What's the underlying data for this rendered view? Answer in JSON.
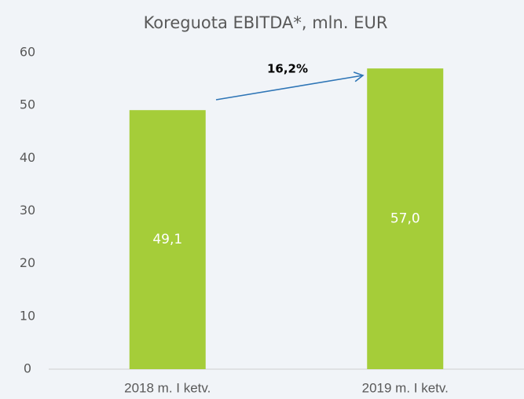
{
  "chart_data": {
    "type": "bar",
    "title": "Koreguota EBITDA*, mln. EUR",
    "categories": [
      "2018 m. I ketv.",
      "2019 m. I ketv."
    ],
    "values": [
      49.1,
      57.0
    ],
    "value_labels": [
      "49,1",
      "57,0"
    ],
    "color": "#a5cd39",
    "ylim": [
      0,
      60
    ],
    "yticks": [
      0,
      10,
      20,
      30,
      40,
      50,
      60
    ],
    "grid": false,
    "annotation": "16,2%"
  }
}
